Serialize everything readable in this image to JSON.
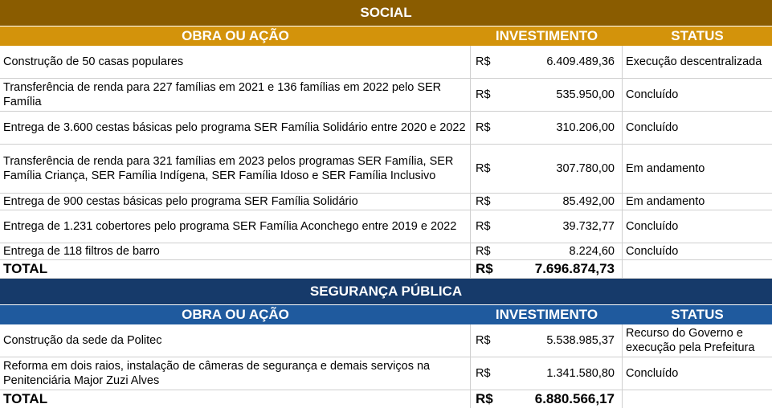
{
  "colors": {
    "social_band": "#8a5c00",
    "social_header": "#d3930b",
    "seguranca_band": "#163a6a",
    "seguranca_header": "#1f5a9e"
  },
  "headers": {
    "obra": "OBRA OU AÇÃO",
    "investimento": "INVESTIMENTO",
    "status": "STATUS"
  },
  "social": {
    "title": "SOCIAL",
    "rows": [
      {
        "obra": "Construção de 50 casas populares",
        "currency": "R$",
        "valor": "6.409.489,36",
        "status": "Execução descentralizada"
      },
      {
        "obra": "Transferência de renda para 227 famílias em 2021 e 136 famílias em 2022 pelo SER Família",
        "currency": "R$",
        "valor": "535.950,00",
        "status": "Concluído"
      },
      {
        "obra": "Entrega de 3.600 cestas básicas pelo programa SER Família Solidário entre 2020 e 2022",
        "currency": "R$",
        "valor": "310.206,00",
        "status": "Concluído"
      },
      {
        "obra": "Transferência de renda para 321 famílias em 2023 pelos programas SER Família, SER Família Criança, SER Família Indígena, SER Família Idoso e SER Família Inclusivo",
        "currency": "R$",
        "valor": "307.780,00",
        "status": "Em andamento"
      },
      {
        "obra": "Entrega de 900 cestas básicas pelo programa SER Família Solidário",
        "currency": "R$",
        "valor": "85.492,00",
        "status": "Em andamento"
      },
      {
        "obra": "Entrega de 1.231 cobertores pelo programa SER Família Aconchego entre 2019 e 2022",
        "currency": "R$",
        "valor": "39.732,77",
        "status": "Concluído"
      },
      {
        "obra": "Entrega de 118 filtros de barro",
        "currency": "R$",
        "valor": "8.224,60",
        "status": "Concluído"
      }
    ],
    "total": {
      "label": "TOTAL",
      "currency": "R$",
      "valor": "7.696.874,73"
    }
  },
  "seguranca": {
    "title": "SEGURANÇA PÚBLICA",
    "rows": [
      {
        "obra": "Construção da sede da Politec",
        "currency": "R$",
        "valor": "5.538.985,37",
        "status": "Recurso do Governo e execução pela Prefeitura"
      },
      {
        "obra": "Reforma em dois raios, instalação de câmeras de segurança e demais serviços na Penitenciária Major Zuzi Alves",
        "currency": "R$",
        "valor": "1.341.580,80",
        "status": "Concluído"
      }
    ],
    "total": {
      "label": "TOTAL",
      "currency": "R$",
      "valor": "6.880.566,17"
    }
  }
}
